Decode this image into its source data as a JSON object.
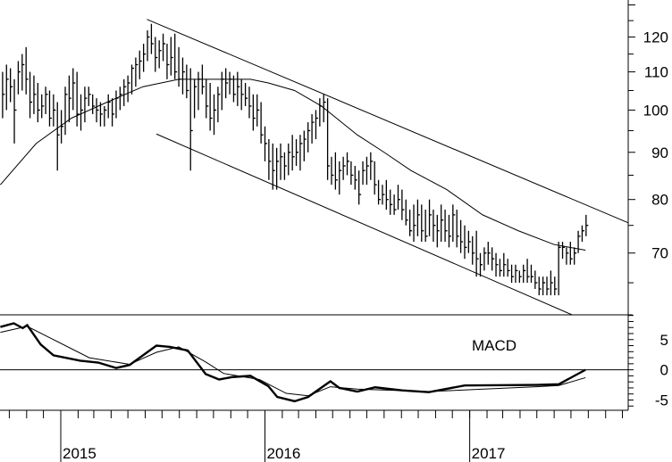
{
  "chart_data": [
    {
      "type": "ohlc",
      "panel": "price",
      "scale": "log",
      "ylim": [
        60,
        131.6
      ],
      "yticks": [
        70,
        80,
        90,
        100,
        110,
        120
      ],
      "grid": false,
      "bar_interval": "weekly",
      "x_start": "2014-09-19",
      "bars_hlc": [
        [
          110,
          98,
          104
        ],
        [
          112,
          100,
          108
        ],
        [
          111,
          102,
          106
        ],
        [
          108,
          92,
          100
        ],
        [
          113,
          104,
          110
        ],
        [
          115,
          105,
          112
        ],
        [
          117,
          104,
          108
        ],
        [
          110,
          98,
          102
        ],
        [
          109,
          99,
          104
        ],
        [
          107,
          97,
          100
        ],
        [
          104,
          98,
          101
        ],
        [
          106,
          99,
          104
        ],
        [
          105,
          96,
          98
        ],
        [
          104,
          96,
          100
        ],
        [
          102,
          86,
          94
        ],
        [
          100,
          92,
          96
        ],
        [
          106,
          94,
          104
        ],
        [
          109,
          97,
          103
        ],
        [
          111,
          100,
          107
        ],
        [
          110,
          96,
          99
        ],
        [
          104,
          95,
          100
        ],
        [
          106,
          97,
          103
        ],
        [
          106,
          101,
          104
        ],
        [
          104,
          99,
          101
        ],
        [
          103,
          97,
          100
        ],
        [
          102,
          96,
          99
        ],
        [
          101,
          96,
          100
        ],
        [
          104,
          98,
          102
        ],
        [
          103,
          96,
          99
        ],
        [
          105,
          98,
          103
        ],
        [
          106,
          100,
          104
        ],
        [
          108,
          101,
          106
        ],
        [
          109,
          102,
          107
        ],
        [
          112,
          104,
          111
        ],
        [
          114,
          106,
          112
        ],
        [
          116,
          108,
          113
        ],
        [
          118,
          110,
          115
        ],
        [
          122,
          113,
          120
        ],
        [
          124,
          115,
          118
        ],
        [
          120,
          110,
          114
        ],
        [
          119,
          111,
          116
        ],
        [
          121,
          113,
          118
        ],
        [
          118,
          108,
          112
        ],
        [
          120,
          109,
          114
        ],
        [
          121,
          108,
          110
        ],
        [
          117,
          106,
          108
        ],
        [
          114,
          104,
          110
        ],
        [
          112,
          103,
          105
        ],
        [
          111,
          86,
          95
        ],
        [
          108,
          98,
          106
        ],
        [
          110,
          100,
          108
        ],
        [
          112,
          104,
          106
        ],
        [
          108,
          98,
          101
        ],
        [
          107,
          95,
          98
        ],
        [
          104,
          94,
          100
        ],
        [
          106,
          97,
          104
        ],
        [
          110,
          100,
          108
        ],
        [
          111,
          103,
          107
        ],
        [
          110,
          104,
          108
        ],
        [
          109,
          102,
          104
        ],
        [
          110,
          101,
          106
        ],
        [
          108,
          100,
          104
        ],
        [
          107,
          101,
          103
        ],
        [
          106,
          98,
          101
        ],
        [
          104,
          95,
          98
        ],
        [
          104,
          96,
          100
        ],
        [
          102,
          92,
          94
        ],
        [
          96,
          88,
          92
        ],
        [
          93,
          84,
          88
        ],
        [
          92,
          82,
          86
        ],
        [
          91,
          82,
          88
        ],
        [
          92,
          84,
          89
        ],
        [
          90,
          84,
          87
        ],
        [
          92,
          85,
          90
        ],
        [
          94,
          86,
          89
        ],
        [
          93,
          87,
          90
        ],
        [
          94,
          86,
          92
        ],
        [
          95,
          88,
          93
        ],
        [
          97,
          90,
          95
        ],
        [
          99,
          92,
          97
        ],
        [
          100,
          93,
          98
        ],
        [
          103,
          96,
          101
        ],
        [
          104,
          97,
          102
        ],
        [
          103,
          84,
          87
        ],
        [
          89,
          83,
          85
        ],
        [
          90,
          82,
          84
        ],
        [
          88,
          81,
          86
        ],
        [
          89,
          84,
          87
        ],
        [
          90,
          85,
          88
        ],
        [
          88,
          83,
          85
        ],
        [
          87,
          82,
          84
        ],
        [
          86,
          79,
          81
        ],
        [
          88,
          83,
          86
        ],
        [
          89,
          83,
          87
        ],
        [
          90,
          84,
          88
        ],
        [
          88,
          81,
          83
        ],
        [
          84,
          79,
          80
        ],
        [
          83,
          79,
          81
        ],
        [
          84,
          78,
          80
        ],
        [
          82,
          77,
          79
        ],
        [
          81,
          77,
          78
        ],
        [
          83,
          78,
          80
        ],
        [
          82,
          76,
          78
        ],
        [
          80,
          75,
          76
        ],
        [
          78,
          73,
          74
        ],
        [
          79,
          72,
          75
        ],
        [
          80,
          73,
          77
        ],
        [
          79,
          72,
          74
        ],
        [
          78,
          72,
          73
        ],
        [
          80,
          73,
          77
        ],
        [
          78,
          72,
          75
        ],
        [
          77,
          71,
          74
        ],
        [
          79,
          72,
          76
        ],
        [
          78,
          72,
          74
        ],
        [
          77,
          71,
          73
        ],
        [
          79,
          72,
          77
        ],
        [
          78,
          71,
          73
        ],
        [
          76,
          70,
          72
        ],
        [
          75,
          69,
          71
        ],
        [
          74,
          70,
          72
        ],
        [
          73,
          68,
          70
        ],
        [
          74,
          66,
          69
        ],
        [
          70,
          66,
          68
        ],
        [
          71,
          67,
          70
        ],
        [
          72,
          68,
          70
        ],
        [
          71,
          67,
          69
        ],
        [
          70,
          66,
          68
        ],
        [
          69,
          66,
          67
        ],
        [
          70,
          66,
          68
        ],
        [
          69,
          66,
          67
        ],
        [
          68,
          65,
          66
        ],
        [
          68,
          65,
          67
        ],
        [
          67,
          65,
          66
        ],
        [
          68,
          65,
          67
        ],
        [
          69,
          65,
          66
        ],
        [
          68,
          65,
          66
        ],
        [
          67,
          64,
          65
        ],
        [
          66,
          63,
          64
        ],
        [
          66,
          63,
          65
        ],
        [
          66,
          63,
          64
        ],
        [
          67,
          63,
          65
        ],
        [
          66,
          63,
          64
        ],
        [
          72,
          63,
          71
        ],
        [
          72,
          69,
          71
        ],
        [
          71,
          68,
          70
        ],
        [
          72,
          68,
          69
        ],
        [
          71,
          68,
          70
        ],
        [
          74,
          70,
          73
        ],
        [
          75,
          72,
          74
        ],
        [
          77,
          73,
          75
        ]
      ],
      "moving_average": [
        [
          "2014-09-15",
          83
        ],
        [
          "2014-11-18",
          92
        ],
        [
          "2015-01-20",
          98
        ],
        [
          "2015-03-25",
          102
        ],
        [
          "2015-05-28",
          106
        ],
        [
          "2015-07-31",
          108
        ],
        [
          "2015-10-03",
          108
        ],
        [
          "2015-12-06",
          108
        ],
        [
          "2016-01-07",
          107
        ],
        [
          "2016-02-23",
          105
        ],
        [
          "2016-04-11",
          101
        ],
        [
          "2016-06-14",
          94
        ],
        [
          "2016-08-01",
          90
        ],
        [
          "2016-09-18",
          86
        ],
        [
          "2016-11-21",
          82
        ],
        [
          "2017-01-24",
          77
        ],
        [
          "2017-03-29",
          74
        ],
        [
          "2017-06-01",
          71.5
        ],
        [
          "2017-07-27",
          70.5
        ]
      ],
      "trendlines": [
        {
          "from": [
            "2015-06-04",
            125.4
          ],
          "to": [
            "2017-10-11",
            75.5
          ]
        },
        {
          "from": [
            "2015-06-21",
            94.2
          ],
          "to": [
            "2017-07-03",
            60
          ]
        }
      ]
    },
    {
      "type": "line",
      "panel": "indicator",
      "title": "MACD",
      "ylim": [
        -6.7,
        9.1
      ],
      "yticks": [
        5,
        0,
        -5
      ],
      "zero_line": true,
      "series": [
        {
          "style": "thick",
          "points": [
            [
              "2014-09-15",
              7.1
            ],
            [
              "2014-10-09",
              7.7
            ],
            [
              "2014-10-25",
              6.9
            ],
            [
              "2014-11-02",
              7.4
            ],
            [
              "2014-11-26",
              4.2
            ],
            [
              "2014-12-19",
              2.4
            ],
            [
              "2015-02-05",
              1.5
            ],
            [
              "2015-03-09",
              1.2
            ],
            [
              "2015-04-10",
              0.3
            ],
            [
              "2015-05-04",
              0.8
            ],
            [
              "2015-06-21",
              4.0
            ],
            [
              "2015-07-15",
              3.8
            ],
            [
              "2015-08-16",
              3.2
            ],
            [
              "2015-09-17",
              -0.7
            ],
            [
              "2015-10-11",
              -1.6
            ],
            [
              "2015-11-04",
              -1.2
            ],
            [
              "2015-12-06",
              -1.0
            ],
            [
              "2016-01-07",
              -2.7
            ],
            [
              "2016-01-23",
              -4.5
            ],
            [
              "2016-02-23",
              -5.2
            ],
            [
              "2016-03-18",
              -4.5
            ],
            [
              "2016-04-27",
              -1.9
            ],
            [
              "2016-05-13",
              -3.0
            ],
            [
              "2016-06-14",
              -3.6
            ],
            [
              "2016-07-16",
              -2.9
            ],
            [
              "2016-09-02",
              -3.4
            ],
            [
              "2016-10-20",
              -3.7
            ],
            [
              "2016-12-23",
              -2.6
            ],
            [
              "2017-04-30",
              -2.5
            ],
            [
              "2017-06-09",
              -2.4
            ],
            [
              "2017-07-03",
              -1.2
            ],
            [
              "2017-07-27",
              0
            ]
          ]
        },
        {
          "style": "thin",
          "points": [
            [
              "2014-09-15",
              6.2
            ],
            [
              "2014-11-02",
              7.2
            ],
            [
              "2014-12-19",
              5.0
            ],
            [
              "2015-02-21",
              2.0
            ],
            [
              "2015-05-04",
              0.9
            ],
            [
              "2015-06-21",
              2.9
            ],
            [
              "2015-07-31",
              3.8
            ],
            [
              "2015-09-17",
              1.3
            ],
            [
              "2015-10-19",
              -0.6
            ],
            [
              "2015-12-22",
              -1.6
            ],
            [
              "2016-02-08",
              -3.9
            ],
            [
              "2016-03-18",
              -4.3
            ],
            [
              "2016-04-27",
              -2.8
            ],
            [
              "2016-06-14",
              -3.2
            ],
            [
              "2016-10-20",
              -3.6
            ],
            [
              "2017-04-30",
              -2.8
            ],
            [
              "2017-06-09",
              -2.6
            ],
            [
              "2017-07-27",
              -1.3
            ]
          ]
        }
      ]
    }
  ],
  "x_axis": {
    "tick_interval": "monthly",
    "range": [
      "2014-09-13",
      "2017-10-20"
    ],
    "year_labels": [
      {
        "date": "2015-01-01",
        "label": "2015"
      },
      {
        "date": "2016-01-01",
        "label": "2016"
      },
      {
        "date": "2017-01-01",
        "label": "2017"
      }
    ]
  },
  "colors": {
    "ink": "#000000",
    "background": "#ffffff"
  }
}
